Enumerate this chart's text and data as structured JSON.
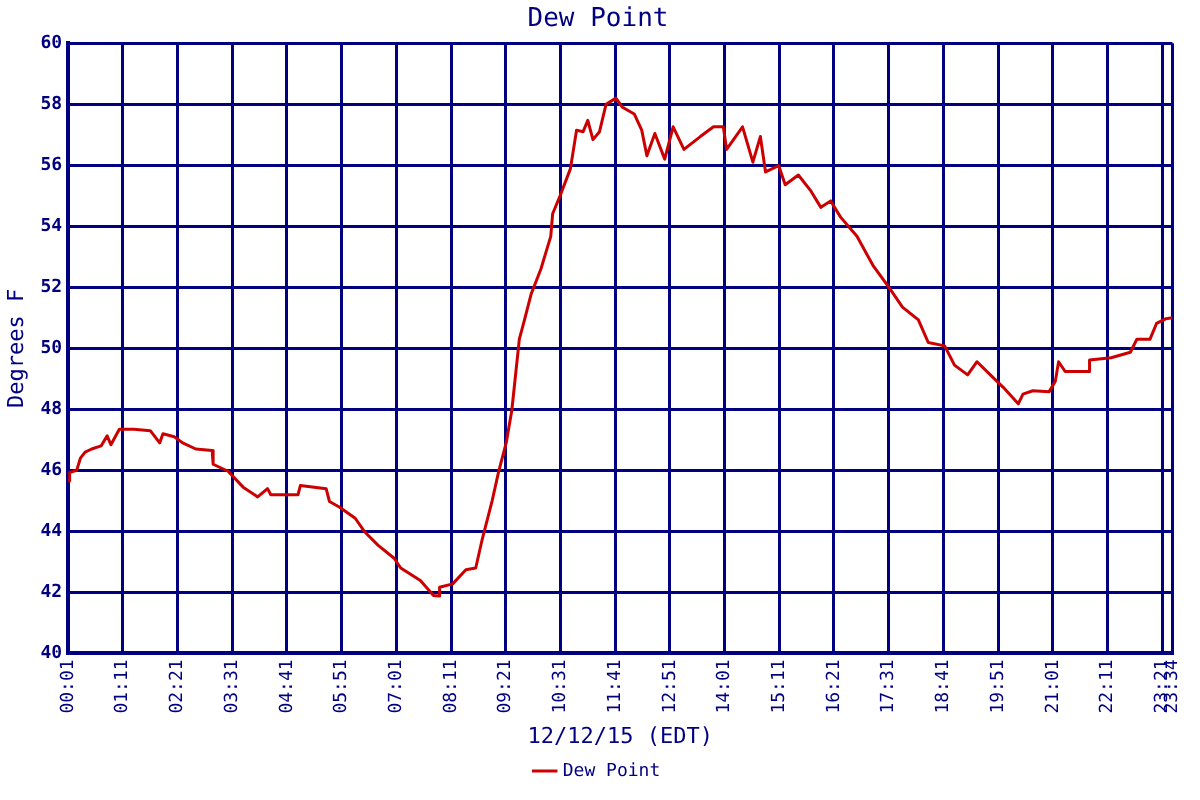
{
  "chart_data": {
    "type": "line",
    "title": "Dew Point",
    "xlabel": "12/12/15 (EDT)",
    "ylabel": "Degrees F",
    "xlim": [
      0.0167,
      23.5667
    ],
    "xticks": [
      {
        "value": 0.0167,
        "label": "00:01"
      },
      {
        "value": 1.1833,
        "label": "01:11"
      },
      {
        "value": 2.35,
        "label": "02:21"
      },
      {
        "value": 3.5167,
        "label": "03:31"
      },
      {
        "value": 4.6833,
        "label": "04:41"
      },
      {
        "value": 5.85,
        "label": "05:51"
      },
      {
        "value": 7.0167,
        "label": "07:01"
      },
      {
        "value": 8.1833,
        "label": "08:11"
      },
      {
        "value": 9.35,
        "label": "09:21"
      },
      {
        "value": 10.5167,
        "label": "10:31"
      },
      {
        "value": 11.6833,
        "label": "11:41"
      },
      {
        "value": 12.85,
        "label": "12:51"
      },
      {
        "value": 14.0167,
        "label": "14:01"
      },
      {
        "value": 15.1833,
        "label": "15:11"
      },
      {
        "value": 16.35,
        "label": "16:21"
      },
      {
        "value": 17.5167,
        "label": "17:31"
      },
      {
        "value": 18.6833,
        "label": "18:41"
      },
      {
        "value": 19.85,
        "label": "19:51"
      },
      {
        "value": 21.0167,
        "label": "21:01"
      },
      {
        "value": 22.1833,
        "label": "22:11"
      },
      {
        "value": 23.35,
        "label": "23:21"
      },
      {
        "value": 23.5667,
        "label": "23:34"
      }
    ],
    "ylim": [
      40,
      60
    ],
    "yticks": [
      40,
      42,
      44,
      46,
      48,
      50,
      52,
      54,
      56,
      58,
      60
    ],
    "grid": true,
    "legend": "bottom",
    "marker": "none",
    "line_style": "solid",
    "series": [
      {
        "name": "Dew Point",
        "color": "#cc0000",
        "x": [
          0.0167,
          0.05,
          0.2,
          0.28,
          0.38,
          0.52,
          0.72,
          0.85,
          0.93,
          1.11,
          1.42,
          1.77,
          1.97,
          2.04,
          2.28,
          2.46,
          2.74,
          3.09,
          3.11,
          3.43,
          3.75,
          4.06,
          4.27,
          4.34,
          4.92,
          4.97,
          5.52,
          5.59,
          5.8,
          6.14,
          6.35,
          6.63,
          6.97,
          7.11,
          7.53,
          7.81,
          7.92,
          7.94,
          8.22,
          8.5,
          8.71,
          8.85,
          9.06,
          9.2,
          9.36,
          9.48,
          9.64,
          9.75,
          9.89,
          10.1,
          10.31,
          10.35,
          10.52,
          10.73,
          10.86,
          11.0,
          11.1,
          11.21,
          11.35,
          11.49,
          11.7,
          11.84,
          12.09,
          12.25,
          12.36,
          12.53,
          12.74,
          12.92,
          13.15,
          13.5,
          13.78,
          13.99,
          14.06,
          14.4,
          14.62,
          14.78,
          14.89,
          15.17,
          15.31,
          15.59,
          15.86,
          16.07,
          16.28,
          16.49,
          16.84,
          17.18,
          17.53,
          17.81,
          18.15,
          18.36,
          18.71,
          18.92,
          19.2,
          19.4,
          19.75,
          19.96,
          20.28,
          20.38,
          20.59,
          20.94,
          21.07,
          21.14,
          21.28,
          21.77,
          21.8,
          22.26,
          22.67,
          22.81,
          23.09,
          23.23,
          23.43,
          23.5667
        ],
        "values": [
          45.65,
          45.93,
          46.0,
          46.4,
          46.6,
          46.7,
          46.8,
          47.13,
          46.84,
          47.35,
          47.35,
          47.3,
          46.9,
          47.2,
          47.1,
          46.9,
          46.7,
          46.65,
          46.2,
          45.97,
          45.45,
          45.13,
          45.4,
          45.2,
          45.2,
          45.5,
          45.4,
          44.98,
          44.8,
          44.43,
          43.97,
          43.54,
          43.12,
          42.8,
          42.39,
          41.9,
          41.88,
          42.17,
          42.28,
          42.74,
          42.8,
          43.75,
          45.0,
          45.97,
          46.9,
          47.97,
          50.3,
          50.93,
          51.77,
          52.6,
          53.67,
          54.41,
          55.04,
          55.89,
          57.15,
          57.1,
          57.47,
          56.84,
          57.1,
          58.0,
          58.2,
          57.9,
          57.68,
          57.15,
          56.31,
          57.04,
          56.2,
          57.26,
          56.52,
          56.94,
          57.26,
          57.26,
          56.52,
          57.26,
          56.1,
          56.94,
          55.78,
          55.99,
          55.36,
          55.68,
          55.15,
          54.62,
          54.83,
          54.3,
          53.67,
          52.72,
          51.98,
          51.35,
          50.93,
          50.19,
          50.08,
          49.45,
          49.13,
          49.56,
          49.03,
          48.72,
          48.18,
          48.5,
          48.61,
          48.58,
          48.92,
          49.56,
          49.24,
          49.24,
          49.62,
          49.69,
          49.87,
          50.3,
          50.3,
          50.82,
          50.97,
          51.0
        ]
      }
    ]
  }
}
